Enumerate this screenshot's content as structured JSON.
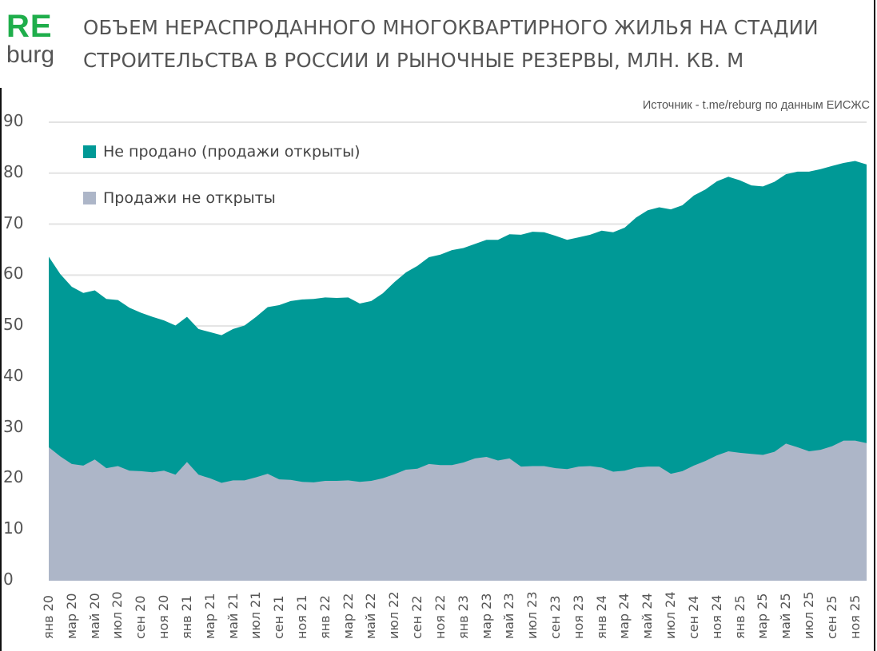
{
  "header": {
    "logo_top": "RE",
    "logo_bottom": "burg",
    "title_line1": "ОБЪЕМ НЕРАСПРОДАННОГО МНОГОКВАРТИРНОГО ЖИЛЬЯ НА СТАДИИ",
    "title_line2": "СТРОИТЕЛЬСТВА В РОССИИ И РЫНОЧНЫЕ РЕЗЕРВЫ, МЛН. КВ. М",
    "source": "Источник - t.me/reburg по данным ЕИСЖС"
  },
  "colors": {
    "unsold": "#009996",
    "not_opened": "#adb6c8",
    "grid": "#e3e3e3",
    "logo_green": "#1fae4b"
  },
  "legend": [
    {
      "label": "Не продано (продажи открыты)",
      "color": "#009996"
    },
    {
      "label": "Продажи не открыты",
      "color": "#adb6c8"
    }
  ],
  "chart_data": {
    "type": "area",
    "stacked": true,
    "title": "ОБЪЕМ НЕРАСПРОДАННОГО МНОГОКВАРТИРНОГО ЖИЛЬЯ НА СТАДИИ СТРОИТЕЛЬСТВА В РОССИИ И РЫНОЧНЫЕ РЕЗЕРВЫ, МЛН. КВ. М",
    "xlabel": "",
    "ylabel": "",
    "ylim": [
      0,
      90
    ],
    "yticks": [
      0,
      10,
      20,
      30,
      40,
      50,
      60,
      70,
      80,
      90
    ],
    "grid": true,
    "legend_position": "top-left inside",
    "x_tick_labels": [
      "янв 20",
      "мар 20",
      "май 20",
      "июл 20",
      "сен 20",
      "ноя 20",
      "янв 21",
      "мар 21",
      "май 21",
      "июл 21",
      "сен 21",
      "ноя 21",
      "янв 22",
      "мар 22",
      "май 22",
      "июл 22",
      "сен 22",
      "ноя 22",
      "янв 23",
      "мар 23",
      "май 23",
      "июл 23",
      "сен 23",
      "ноя 23",
      "янв 24",
      "мар 24",
      "май 24",
      "июл 24",
      "сен 24",
      "ноя 24",
      "янв 25",
      "мар 25",
      "май 25",
      "июл 25",
      "сен 25",
      "ноя 25"
    ],
    "x_start": "янв 20",
    "x_end": "дек 25",
    "months_count": 72,
    "series": [
      {
        "name": "Продажи не открыты",
        "values": [
          26.2,
          24.4,
          22.9,
          22.6,
          23.8,
          22.1,
          22.5,
          21.6,
          21.5,
          21.3,
          21.6,
          20.8,
          23.3,
          20.8,
          20.1,
          19.2,
          19.7,
          19.7,
          20.3,
          21.0,
          19.9,
          19.8,
          19.4,
          19.3,
          19.6,
          19.6,
          19.7,
          19.4,
          19.6,
          20.1,
          20.9,
          21.8,
          22.0,
          22.9,
          22.7,
          22.7,
          23.2,
          24.0,
          24.3,
          23.6,
          24.0,
          22.4,
          22.5,
          22.5,
          22.1,
          21.9,
          22.4,
          22.5,
          22.2,
          21.4,
          21.6,
          22.2,
          22.4,
          22.4,
          21.0,
          21.5,
          22.6,
          23.5,
          24.6,
          25.4,
          25.1,
          24.9,
          24.7,
          25.3,
          26.9,
          26.2,
          25.4,
          25.7,
          26.4,
          27.5,
          27.5,
          27.0
        ]
      },
      {
        "name": "Не продано (продажи открыты)",
        "values": [
          37.4,
          35.8,
          34.8,
          33.9,
          33.2,
          33.2,
          32.6,
          32.0,
          31.1,
          30.5,
          29.5,
          29.3,
          28.5,
          28.6,
          28.7,
          29.0,
          29.7,
          30.4,
          31.5,
          32.7,
          34.2,
          35.1,
          35.8,
          36.0,
          36.0,
          35.9,
          35.9,
          35.0,
          35.3,
          36.3,
          37.7,
          38.7,
          39.8,
          40.6,
          41.3,
          42.2,
          42.1,
          42.1,
          42.6,
          43.3,
          44.0,
          45.5,
          46.0,
          45.9,
          45.6,
          45.0,
          45.0,
          45.4,
          46.5,
          47.0,
          47.7,
          49.1,
          50.3,
          50.9,
          51.9,
          52.2,
          53.0,
          53.3,
          53.8,
          53.9,
          53.5,
          52.7,
          52.7,
          53.0,
          52.9,
          54.1,
          54.9,
          55.1,
          55.0,
          54.5,
          54.9,
          54.7
        ]
      }
    ],
    "totals": [
      63.6,
      60.2,
      57.7,
      56.5,
      57.0,
      55.3,
      55.1,
      53.6,
      52.6,
      51.8,
      51.1,
      50.1,
      51.8,
      49.4,
      48.8,
      48.2,
      49.4,
      50.1,
      51.8,
      53.7,
      54.1,
      54.9,
      55.2,
      55.3,
      55.6,
      55.5,
      55.6,
      54.4,
      54.9,
      56.4,
      58.6,
      60.5,
      61.8,
      63.5,
      64.0,
      64.9,
      65.3,
      66.1,
      66.9,
      66.9,
      68.0,
      67.9,
      68.5,
      68.4,
      67.7,
      66.9,
      67.4,
      67.9,
      68.7,
      68.4,
      69.3,
      71.3,
      72.7,
      73.3,
      72.9,
      73.7,
      75.6,
      76.8,
      78.4,
      79.3,
      78.6,
      77.6,
      77.4,
      78.3,
      79.8,
      80.3,
      80.3,
      80.8,
      81.4,
      82.0,
      82.4,
      81.7
    ]
  }
}
